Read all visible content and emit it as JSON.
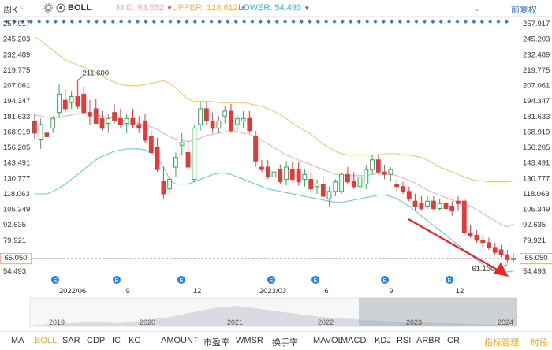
{
  "header": {
    "period": "周K",
    "indicator": "BOLL",
    "mid_label": "MID:",
    "mid_value": "93.552",
    "upper_label": "UPPER:",
    "upper_value": "128.612",
    "lower_label": "LOWER:",
    "lower_value": "54.493",
    "adjust_label": "前复权",
    "colors": {
      "mid": "#f4a6c0",
      "upper": "#f5c060",
      "lower": "#5ec4e8",
      "up": "#e23b3b",
      "down": "#34a853",
      "accent": "#f5a623",
      "arrow": "#e8262b"
    }
  },
  "price_axis": {
    "ticks": [
      "257.917",
      "245.203",
      "232.489",
      "219.775",
      "207.061",
      "194.347",
      "181.633",
      "168.919",
      "156.205",
      "143.491",
      "130.777",
      "118.063",
      "105.349",
      "92.635",
      "79.921",
      "65.050",
      "54.493"
    ],
    "current_price": "65.050"
  },
  "time_axis": {
    "labels": [
      "2022/06",
      "9",
      "12",
      "2023/03",
      "6",
      "9",
      "12"
    ]
  },
  "annotations": {
    "high_label": "211.600",
    "low_label": "61.100"
  },
  "navigator": {
    "years": [
      "2019",
      "2020",
      "2021",
      "2022",
      "2023",
      "2024"
    ]
  },
  "tabs": [
    "MA",
    "BOLL",
    "SAR",
    "CDP",
    "IC",
    "KC",
    "AMOUNT",
    "市盈率",
    "WMSR",
    "换手率",
    "MAVOL",
    "MACD",
    "KDJ",
    "RSI",
    "ARBR",
    "CR"
  ],
  "active_tab": "BOLL",
  "toolbar_right": {
    "manage": "指标管理",
    "timeshare": "时段"
  },
  "chart_data": {
    "type": "candlestick",
    "ylim": [
      54.493,
      257.917
    ],
    "candles": [
      {
        "o": 178,
        "h": 184,
        "l": 163,
        "c": 168
      },
      {
        "o": 163,
        "h": 180,
        "l": 155,
        "c": 175
      },
      {
        "o": 168,
        "h": 172,
        "l": 160,
        "c": 165
      },
      {
        "o": 172,
        "h": 182,
        "l": 168,
        "c": 180
      },
      {
        "o": 185,
        "h": 208,
        "l": 180,
        "c": 200
      },
      {
        "o": 195,
        "h": 204,
        "l": 185,
        "c": 188
      },
      {
        "o": 193,
        "h": 202,
        "l": 188,
        "c": 198
      },
      {
        "o": 198,
        "h": 211.6,
        "l": 188,
        "c": 190
      },
      {
        "o": 200,
        "h": 206,
        "l": 184,
        "c": 185
      },
      {
        "o": 185,
        "h": 195,
        "l": 175,
        "c": 182
      },
      {
        "o": 188,
        "h": 196,
        "l": 178,
        "c": 176
      },
      {
        "o": 180,
        "h": 186,
        "l": 170,
        "c": 172
      },
      {
        "o": 176,
        "h": 184,
        "l": 168,
        "c": 180
      },
      {
        "o": 185,
        "h": 192,
        "l": 176,
        "c": 178
      },
      {
        "o": 180,
        "h": 188,
        "l": 172,
        "c": 175
      },
      {
        "o": 176,
        "h": 184,
        "l": 168,
        "c": 180
      },
      {
        "o": 180,
        "h": 188,
        "l": 172,
        "c": 175
      },
      {
        "o": 175,
        "h": 182,
        "l": 168,
        "c": 172
      },
      {
        "o": 178,
        "h": 184,
        "l": 160,
        "c": 162
      },
      {
        "o": 165,
        "h": 170,
        "l": 150,
        "c": 152
      },
      {
        "o": 156,
        "h": 164,
        "l": 136,
        "c": 138
      },
      {
        "o": 128,
        "h": 140,
        "l": 114,
        "c": 118
      },
      {
        "o": 122,
        "h": 132,
        "l": 118,
        "c": 130
      },
      {
        "o": 140,
        "h": 152,
        "l": 132,
        "c": 148
      },
      {
        "o": 158,
        "h": 168,
        "l": 150,
        "c": 160
      },
      {
        "o": 152,
        "h": 162,
        "l": 138,
        "c": 140
      },
      {
        "o": 130,
        "h": 175,
        "l": 128,
        "c": 172
      },
      {
        "o": 175,
        "h": 194,
        "l": 170,
        "c": 188
      },
      {
        "o": 188,
        "h": 194,
        "l": 175,
        "c": 178
      },
      {
        "o": 178,
        "h": 185,
        "l": 168,
        "c": 172
      },
      {
        "o": 172,
        "h": 182,
        "l": 168,
        "c": 178
      },
      {
        "o": 182,
        "h": 190,
        "l": 176,
        "c": 186
      },
      {
        "o": 186,
        "h": 192,
        "l": 168,
        "c": 170
      },
      {
        "o": 175,
        "h": 184,
        "l": 168,
        "c": 180
      },
      {
        "o": 178,
        "h": 186,
        "l": 172,
        "c": 180
      },
      {
        "o": 180,
        "h": 186,
        "l": 168,
        "c": 170
      },
      {
        "o": 165,
        "h": 170,
        "l": 140,
        "c": 145
      },
      {
        "o": 140,
        "h": 146,
        "l": 136,
        "c": 138
      },
      {
        "o": 140,
        "h": 146,
        "l": 130,
        "c": 132
      },
      {
        "o": 132,
        "h": 140,
        "l": 128,
        "c": 136
      },
      {
        "o": 138,
        "h": 142,
        "l": 126,
        "c": 128
      },
      {
        "o": 130,
        "h": 145,
        "l": 125,
        "c": 140
      },
      {
        "o": 138,
        "h": 144,
        "l": 128,
        "c": 130
      },
      {
        "o": 138,
        "h": 144,
        "l": 125,
        "c": 128
      },
      {
        "o": 130,
        "h": 138,
        "l": 124,
        "c": 134
      },
      {
        "o": 130,
        "h": 136,
        "l": 120,
        "c": 122
      },
      {
        "o": 124,
        "h": 130,
        "l": 118,
        "c": 126
      },
      {
        "o": 126,
        "h": 132,
        "l": 114,
        "c": 116
      },
      {
        "o": 114,
        "h": 124,
        "l": 108,
        "c": 120
      },
      {
        "o": 120,
        "h": 130,
        "l": 116,
        "c": 128
      },
      {
        "o": 120,
        "h": 136,
        "l": 118,
        "c": 134
      },
      {
        "o": 134,
        "h": 140,
        "l": 126,
        "c": 128
      },
      {
        "o": 128,
        "h": 136,
        "l": 122,
        "c": 124
      },
      {
        "o": 124,
        "h": 134,
        "l": 120,
        "c": 132
      },
      {
        "o": 126,
        "h": 142,
        "l": 122,
        "c": 138
      },
      {
        "o": 138,
        "h": 150,
        "l": 134,
        "c": 146
      },
      {
        "o": 146,
        "h": 150,
        "l": 134,
        "c": 136
      },
      {
        "o": 136,
        "h": 142,
        "l": 130,
        "c": 134
      },
      {
        "o": 134,
        "h": 140,
        "l": 128,
        "c": 138
      },
      {
        "o": 126,
        "h": 130,
        "l": 120,
        "c": 124
      },
      {
        "o": 124,
        "h": 128,
        "l": 118,
        "c": 120
      },
      {
        "o": 120,
        "h": 124,
        "l": 112,
        "c": 114
      },
      {
        "o": 112,
        "h": 118,
        "l": 104,
        "c": 108
      },
      {
        "o": 110,
        "h": 116,
        "l": 104,
        "c": 106
      },
      {
        "o": 108,
        "h": 116,
        "l": 106,
        "c": 112
      },
      {
        "o": 112,
        "h": 116,
        "l": 104,
        "c": 106
      },
      {
        "o": 106,
        "h": 114,
        "l": 104,
        "c": 110
      },
      {
        "o": 110,
        "h": 114,
        "l": 104,
        "c": 106
      },
      {
        "o": 108,
        "h": 112,
        "l": 100,
        "c": 104
      },
      {
        "o": 112,
        "h": 116,
        "l": 104,
        "c": 110
      },
      {
        "o": 112,
        "h": 114,
        "l": 84,
        "c": 86
      },
      {
        "o": 86,
        "h": 92,
        "l": 82,
        "c": 84
      },
      {
        "o": 84,
        "h": 88,
        "l": 78,
        "c": 80
      },
      {
        "o": 80,
        "h": 84,
        "l": 74,
        "c": 78
      },
      {
        "o": 78,
        "h": 82,
        "l": 72,
        "c": 74
      },
      {
        "o": 74,
        "h": 78,
        "l": 68,
        "c": 70
      },
      {
        "o": 72,
        "h": 76,
        "l": 66,
        "c": 68
      },
      {
        "o": 68,
        "h": 72,
        "l": 61.1,
        "c": 64
      },
      {
        "o": 64,
        "h": 69,
        "l": 62,
        "c": 65.05
      }
    ],
    "mid": [
      183,
      182,
      181,
      181,
      181,
      182,
      183,
      184,
      184,
      184,
      183,
      182,
      181,
      180,
      179,
      178,
      177,
      176,
      175,
      173,
      171,
      168,
      165,
      163,
      162,
      161,
      162,
      164,
      166,
      167,
      168,
      169,
      170,
      169,
      168,
      167,
      165,
      162,
      159,
      156,
      153,
      150,
      148,
      146,
      144,
      142,
      140,
      138,
      136,
      134,
      133,
      133,
      133,
      133,
      133,
      134,
      135,
      135,
      134,
      133,
      131,
      129,
      127,
      124,
      121,
      119,
      117,
      115,
      113,
      111,
      110,
      108,
      105,
      102,
      99,
      96,
      93,
      91,
      93.552
    ],
    "upper": [
      247,
      244,
      240,
      236,
      232,
      228,
      226,
      224,
      222,
      220,
      218,
      215,
      212,
      210,
      208,
      207,
      207,
      207,
      208,
      209,
      210,
      211,
      209,
      205,
      200,
      196,
      194,
      194,
      194,
      194,
      193,
      193,
      193,
      193,
      193,
      192,
      191,
      190,
      188,
      186,
      183,
      180,
      176,
      173,
      170,
      167,
      163,
      159,
      156,
      153,
      151,
      150,
      150,
      150,
      150,
      150,
      150,
      151,
      151,
      151,
      150,
      150,
      149,
      148,
      146,
      143,
      140,
      138,
      136,
      134,
      132,
      130,
      129,
      128.612,
      128,
      128,
      128,
      128,
      128.612
    ],
    "lower": [
      118,
      118,
      118,
      120,
      123,
      126,
      130,
      134,
      138,
      142,
      146,
      149,
      151,
      153,
      154,
      155,
      155,
      155,
      154,
      152,
      148,
      140,
      130,
      126,
      126,
      126,
      128,
      130,
      132,
      134,
      135,
      135,
      134,
      132,
      130,
      128,
      126,
      124,
      122,
      121,
      120,
      119,
      118,
      117,
      116,
      115,
      114,
      113,
      112,
      111,
      111,
      112,
      113,
      114,
      115,
      116,
      117,
      117,
      116,
      114,
      111,
      108,
      104,
      100,
      96,
      92,
      88,
      84,
      80,
      76,
      72,
      68,
      64,
      60,
      57,
      55,
      54,
      54,
      54.493
    ]
  }
}
